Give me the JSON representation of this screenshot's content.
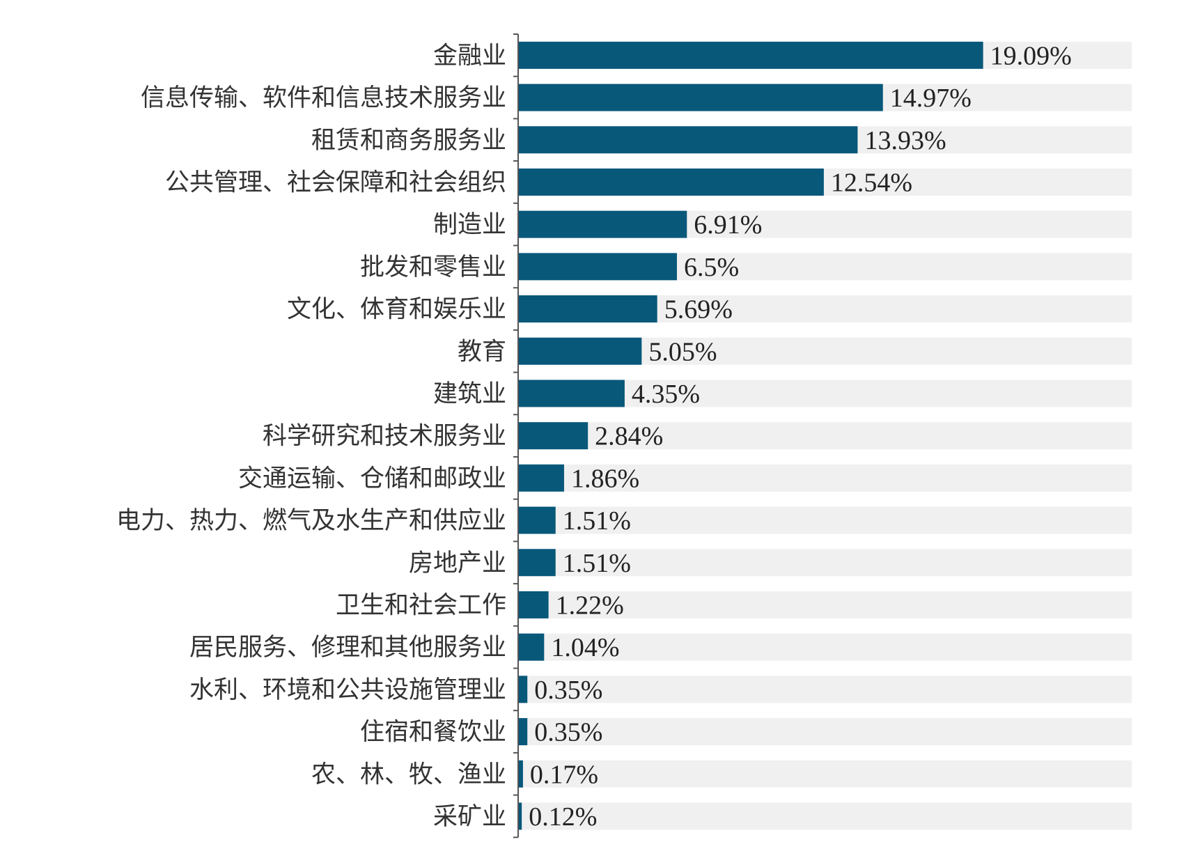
{
  "chart_data": {
    "type": "bar",
    "orientation": "horizontal",
    "title": "",
    "xlabel": "",
    "ylabel": "",
    "categories": [
      "金融业",
      "信息传输、软件和信息技术服务业",
      "租赁和商务服务业",
      "公共管理、社会保障和社会组织",
      "制造业",
      "批发和零售业",
      "文化、体育和娱乐业",
      "教育",
      "建筑业",
      "科学研究和技术服务业",
      "交通运输、仓储和邮政业",
      "电力、热力、燃气及水生产和供应业",
      "房地产业",
      "卫生和社会工作",
      "居民服务、修理和其他服务业",
      "水利、环境和公共设施管理业",
      "住宿和餐饮业",
      "农、林、牧、渔业",
      "采矿业"
    ],
    "values": [
      19.09,
      14.97,
      13.93,
      12.54,
      6.91,
      6.5,
      5.69,
      5.05,
      4.35,
      2.84,
      1.86,
      1.51,
      1.51,
      1.22,
      1.04,
      0.35,
      0.35,
      0.17,
      0.12
    ],
    "data_labels": [
      "19.09%",
      "14.97%",
      "13.93%",
      "12.54%",
      "6.91%",
      "6.5%",
      "5.69%",
      "5.05%",
      "4.35%",
      "2.84%",
      "1.86%",
      "1.51%",
      "1.51%",
      "1.22%",
      "1.04%",
      "0.35%",
      "0.35%",
      "0.17%",
      "0.12%"
    ],
    "xlim": [
      0,
      25.2
    ],
    "unit": "%",
    "grid": false,
    "bar_background": true,
    "colors": {
      "bar": "#08587a",
      "background": "#f0f0f0",
      "axis": "#555555"
    }
  }
}
